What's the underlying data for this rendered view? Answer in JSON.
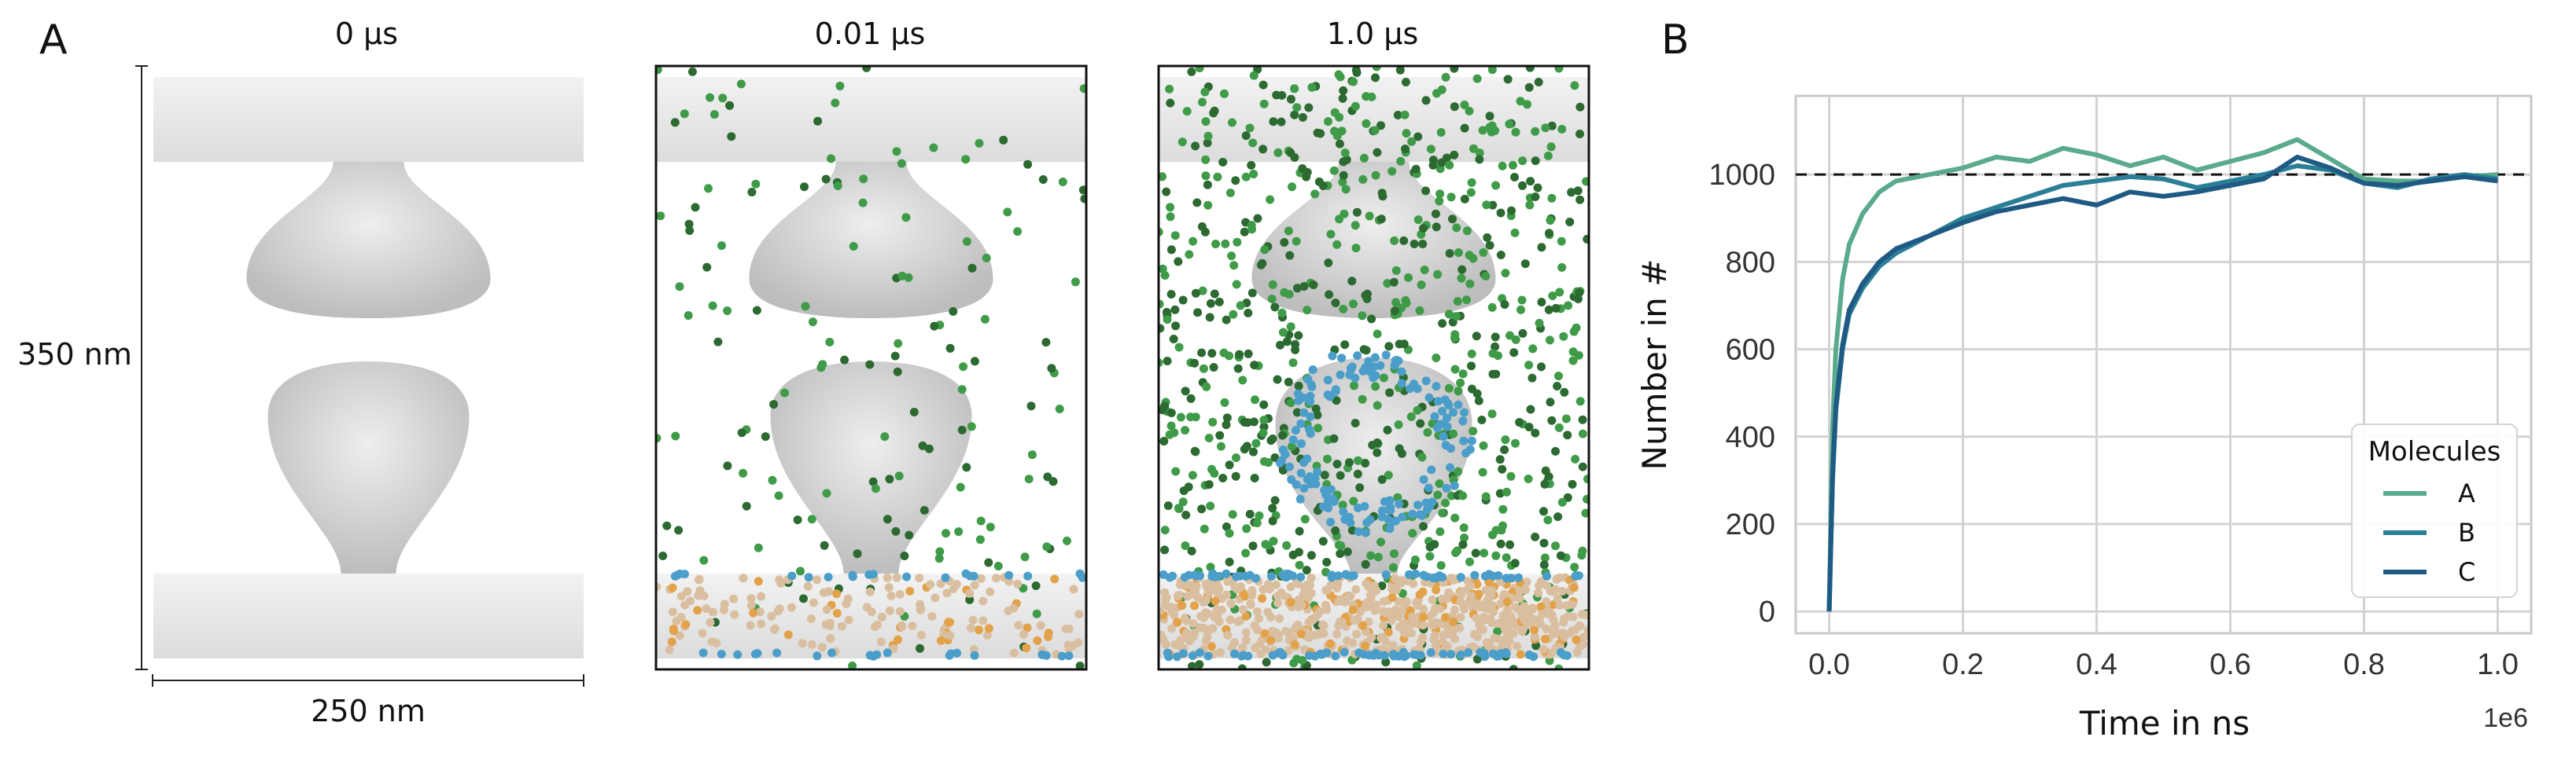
{
  "panel_a": {
    "label": "A",
    "snapshots": [
      {
        "title": "0 µs",
        "molecule_counts": {
          "green": 0,
          "blue": 0,
          "orange": 0
        }
      },
      {
        "title": "0.01 µs",
        "molecule_counts": {
          "green": 180,
          "blue": 40,
          "orange": 160
        }
      },
      {
        "title": "1.0 µs",
        "molecule_counts": {
          "green": 900,
          "blue": 260,
          "orange": 650
        }
      }
    ],
    "height_label": "350 nm",
    "width_label": "250 nm",
    "colors": {
      "membrane": "#e6e6e6",
      "green": "#3f9b48",
      "dark_green": "#2c6a31",
      "blue": "#4a9ec9",
      "orange": "#e2a24a"
    }
  },
  "panel_b": {
    "label": "B",
    "chart_data": {
      "type": "line",
      "title": "",
      "xlabel": "Time in ns",
      "ylabel": "Number in #",
      "xlim": [
        -50000,
        1050000
      ],
      "ylim": [
        -50,
        1180
      ],
      "x_offset_label": "1e6",
      "xticks": [
        0,
        200000,
        400000,
        600000,
        800000,
        1000000
      ],
      "xtick_labels": [
        "0.0",
        "0.2",
        "0.4",
        "0.6",
        "0.8",
        "1.0"
      ],
      "yticks": [
        0,
        200,
        400,
        600,
        800,
        1000
      ],
      "ytick_labels": [
        "0",
        "200",
        "400",
        "600",
        "800",
        "1000"
      ],
      "grid": true,
      "reference_line": {
        "y": 1000,
        "style": "dashed",
        "color": "#111111"
      },
      "legend": {
        "title": "Molecules",
        "placement": "lower-right"
      },
      "series": [
        {
          "name": "A",
          "color": "#5aaa8c",
          "x": [
            0,
            5000,
            10000,
            20000,
            30000,
            50000,
            75000,
            100000,
            150000,
            200000,
            250000,
            300000,
            350000,
            400000,
            450000,
            500000,
            550000,
            600000,
            650000,
            700000,
            750000,
            800000,
            850000,
            900000,
            950000,
            1000000
          ],
          "y": [
            0,
            420,
            600,
            760,
            840,
            910,
            960,
            985,
            1000,
            1015,
            1040,
            1030,
            1060,
            1045,
            1020,
            1040,
            1010,
            1030,
            1050,
            1080,
            1035,
            990,
            985,
            985,
            995,
            1000
          ]
        },
        {
          "name": "B",
          "color": "#2a7f96",
          "x": [
            0,
            5000,
            10000,
            20000,
            30000,
            50000,
            75000,
            100000,
            150000,
            200000,
            250000,
            300000,
            350000,
            400000,
            450000,
            500000,
            550000,
            600000,
            650000,
            700000,
            750000,
            800000,
            850000,
            900000,
            950000,
            1000000
          ],
          "y": [
            0,
            300,
            460,
            600,
            680,
            740,
            790,
            820,
            860,
            900,
            925,
            950,
            975,
            985,
            995,
            990,
            970,
            985,
            1000,
            1020,
            1010,
            980,
            970,
            990,
            1000,
            990
          ]
        },
        {
          "name": "C",
          "color": "#1f5a84",
          "x": [
            0,
            5000,
            10000,
            20000,
            30000,
            50000,
            75000,
            100000,
            150000,
            200000,
            250000,
            300000,
            350000,
            400000,
            450000,
            500000,
            550000,
            600000,
            650000,
            700000,
            750000,
            800000,
            850000,
            900000,
            950000,
            1000000
          ],
          "y": [
            0,
            310,
            470,
            610,
            690,
            750,
            800,
            830,
            860,
            890,
            915,
            930,
            945,
            930,
            960,
            950,
            960,
            975,
            990,
            1040,
            1015,
            980,
            975,
            985,
            995,
            985
          ]
        }
      ]
    }
  }
}
